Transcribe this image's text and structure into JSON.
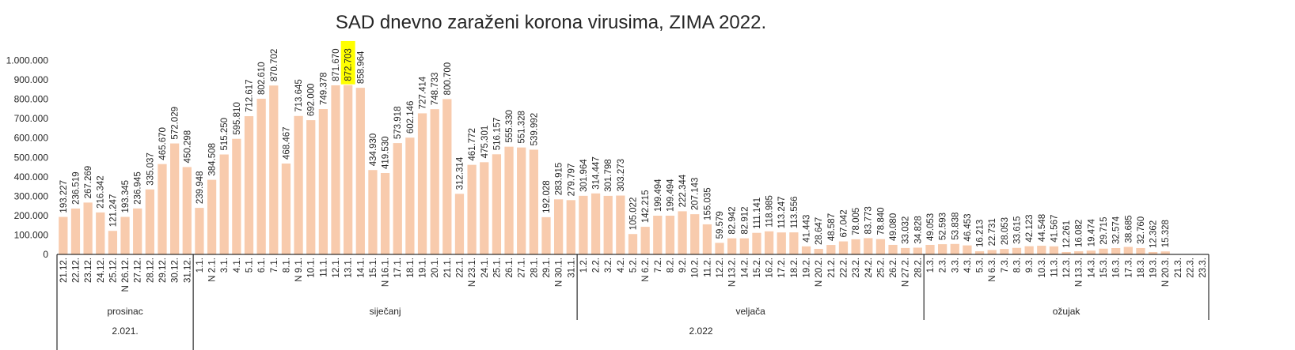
{
  "chart_data": {
    "type": "bar",
    "title": "SAD dnevno zaraženi korona virusima, ZIMA 2022.",
    "xlabel": "",
    "ylabel": "",
    "ylim": [
      0,
      1000000
    ],
    "yticks": [
      0,
      100000,
      200000,
      300000,
      400000,
      500000,
      600000,
      700000,
      800000,
      900000,
      1000000
    ],
    "ytick_labels": [
      "0",
      "100.000",
      "200.000",
      "300.000",
      "400.000",
      "500.000",
      "600.000",
      "700.000",
      "800.000",
      "900.000",
      "1.000.000"
    ],
    "grid": false,
    "legend": "none",
    "colors": {
      "bar": "#f8cbad",
      "highlight": "#ffff00",
      "text": "#262626",
      "axis": "#000000"
    },
    "highlight_category": "13.1.",
    "categories": [
      "21.12.",
      "22.12.",
      "23.12.",
      "24.12.",
      "25.12.",
      "N 26.12.",
      "27.12.",
      "28.12.",
      "29.12.",
      "30.12.",
      "31.12.",
      "1.1.",
      "N 2.1.",
      "3.1.",
      "4.1.",
      "5.1.",
      "6.1.",
      "7.1.",
      "8.1.",
      "N 9.1.",
      "10.1.",
      "11.1.",
      "12.1.",
      "13.1.",
      "14.1.",
      "15.1.",
      "N 16.1.",
      "17.1.",
      "18.1.",
      "19.1.",
      "20.1.",
      "21.1.",
      "22.1.",
      "N 23.1.",
      "24.1.",
      "25.1.",
      "26.1.",
      "27.1.",
      "28.1.",
      "29.1.",
      "N 30.1.",
      "31.1.",
      "1.2.",
      "2.2.",
      "3.2.",
      "4.2.",
      "5.2.",
      "N 6.2.",
      "7.2.",
      "8.2.",
      "9.2.",
      "10.2.",
      "11.2.",
      "12.2.",
      "N 13.2.",
      "14.2.",
      "15.2.",
      "16.2.",
      "17.2.",
      "18.2.",
      "19.2.",
      "N 20.2.",
      "21.2.",
      "22.2.",
      "23.2.",
      "24.2.",
      "25.2.",
      "26.2.",
      "N 27.2.",
      "28.2.",
      "1.3.",
      "2.3.",
      "3.3.",
      "4.3.",
      "5.3.",
      "N 6.3.",
      "7.3.",
      "8.3.",
      "9.3.",
      "10.3.",
      "11.3.",
      "12.3.",
      "N 13.3.",
      "14.3.",
      "15.3.",
      "16.3.",
      "17.3.",
      "18.3.",
      "19.3.",
      "N 20.3.",
      "21.3.",
      "22.3.",
      "23.3."
    ],
    "values": [
      193227,
      236519,
      267269,
      216342,
      121247,
      193345,
      236945,
      335037,
      465670,
      572029,
      450298,
      239948,
      384508,
      515250,
      595810,
      712617,
      802610,
      870702,
      468467,
      713645,
      692000,
      749378,
      871670,
      872703,
      858964,
      434930,
      419530,
      573918,
      602146,
      727414,
      748733,
      800700,
      312314,
      461772,
      475301,
      516157,
      555330,
      551328,
      539992,
      192028,
      283915,
      279797,
      301964,
      314447,
      301798,
      303273,
      105022,
      142215,
      199494,
      199494,
      222344,
      207143,
      155035,
      59579,
      82942,
      82912,
      111141,
      118985,
      113247,
      113556,
      41443,
      28647,
      48587,
      67042,
      78005,
      83773,
      78840,
      49080,
      33032,
      34828,
      49053,
      52593,
      53838,
      46453,
      16213,
      22731,
      28053,
      33615,
      42123,
      44548,
      41567,
      12261,
      16082,
      19474,
      29715,
      32574,
      38685,
      32760,
      12362,
      15328,
      null,
      null,
      null
    ],
    "data_labels": [
      "193.227",
      "236.519",
      "267.269",
      "216.342",
      "121.247",
      "193.345",
      "236.945",
      "335.037",
      "465.670",
      "572.029",
      "450.298",
      "239.948",
      "384.508",
      "515.250",
      "595.810",
      "712.617",
      "802.610",
      "870.702",
      "468.467",
      "713.645",
      "692.000",
      "749.378",
      "871.670",
      "872.703",
      "858.964",
      "434.930",
      "419.530",
      "573.918",
      "602.146",
      "727.414",
      "748.733",
      "800.700",
      "312.314",
      "461.772",
      "475.301",
      "516.157",
      "555.330",
      "551.328",
      "539.992",
      "192.028",
      "283.915",
      "279.797",
      "301.964",
      "314.447",
      "301.798",
      "303.273",
      "105.022",
      "142.215",
      "199.494",
      "199.494",
      "222.344",
      "207.143",
      "155.035",
      "59.579",
      "82.942",
      "82.912",
      "111.141",
      "118.985",
      "113.247",
      "113.556",
      "41.443",
      "28.647",
      "48.587",
      "67.042",
      "78.005",
      "83.773",
      "78.840",
      "49.080",
      "33.032",
      "34.828",
      "49.053",
      "52.593",
      "53.838",
      "46.453",
      "16.213",
      "22.731",
      "28.053",
      "33.615",
      "42.123",
      "44.548",
      "41.567",
      "12.261",
      "16.082",
      "19.474",
      "29.715",
      "32.574",
      "38.685",
      "32.760",
      "12.362",
      "15.328",
      "",
      "",
      ""
    ],
    "month_groups": [
      {
        "label": "prosinac",
        "count": 11
      },
      {
        "label": "siječanj",
        "count": 31
      },
      {
        "label": "veljača",
        "count": 28
      },
      {
        "label": "ožujak",
        "count": 23
      }
    ],
    "year_groups": [
      {
        "label": "2.021.",
        "count": 11
      },
      {
        "label": "2.022",
        "count": 82
      }
    ]
  }
}
